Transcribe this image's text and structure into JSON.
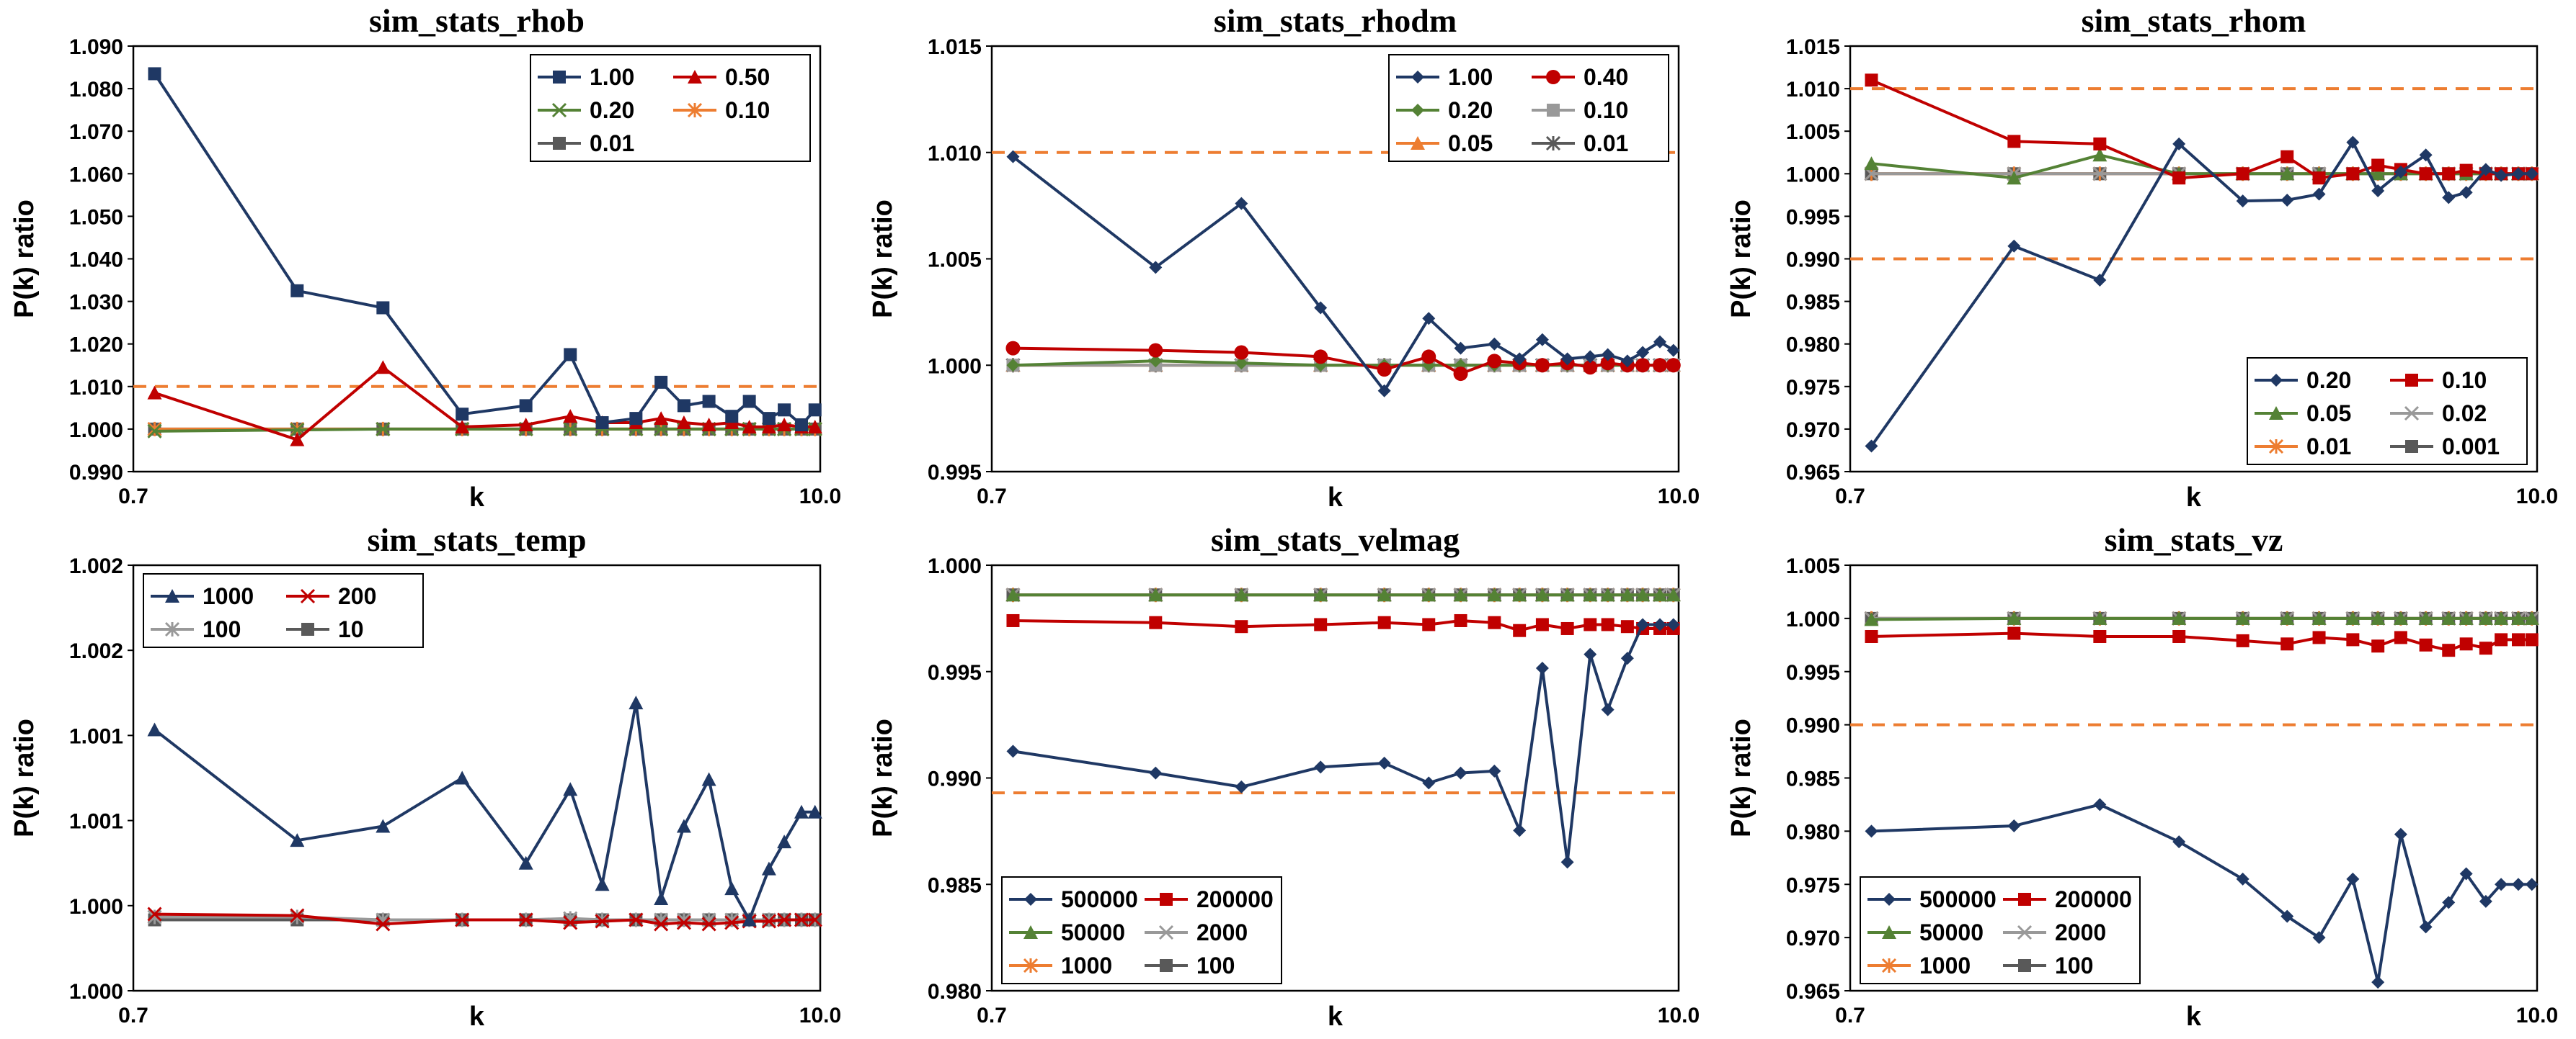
{
  "chart_data": [
    {
      "type": "line",
      "title": "sim_stats_rhob",
      "xlabel": "k",
      "ylabel": "P(k) ratio",
      "xscale": "log",
      "xlim": [
        0.7,
        10.0
      ],
      "ylim": [
        0.99,
        1.09
      ],
      "yticks": [
        "0.990",
        "1.000",
        "1.010",
        "1.020",
        "1.030",
        "1.040",
        "1.050",
        "1.060",
        "1.070",
        "1.080",
        "1.090"
      ],
      "xtick_labels": [
        "0.7",
        "10.0"
      ],
      "reference_lines": [
        1.01
      ],
      "legend": {
        "position": "top-right",
        "columns": 2
      },
      "x": [
        0.76,
        1.32,
        1.84,
        2.5,
        3.2,
        3.8,
        4.3,
        4.9,
        5.4,
        5.9,
        6.5,
        7.1,
        7.6,
        8.2,
        8.7,
        9.3,
        9.8
      ],
      "series": [
        {
          "name": "1.00",
          "color": "#1f3864",
          "marker": "square",
          "values": [
            1.0835,
            1.0325,
            1.0285,
            1.0035,
            1.0055,
            1.0175,
            1.0015,
            1.0025,
            1.011,
            1.0055,
            1.0065,
            1.003,
            1.0065,
            1.0025,
            1.0045,
            1.001,
            1.0045
          ]
        },
        {
          "name": "0.50",
          "color": "#c00000",
          "marker": "triangle",
          "values": [
            1.0085,
            0.9975,
            1.0145,
            1.0005,
            1.001,
            1.003,
            1.0015,
            1.0015,
            1.0025,
            1.0015,
            1.001,
            1.0015,
            1.0005,
            1.0005,
            1.001,
            1.0005,
            1.0005
          ]
        },
        {
          "name": "0.20",
          "color": "#548235",
          "marker": "x",
          "values": [
            0.9995,
            0.9998,
            1.0,
            1.0,
            1.0,
            1.0,
            1.0,
            1.0,
            1.0,
            1.0,
            1.0,
            1.0,
            1.0,
            1.0,
            1.0,
            1.0,
            1.0
          ]
        },
        {
          "name": "0.10",
          "color": "#ed7d31",
          "marker": "star",
          "values": [
            1.0,
            1.0,
            1.0,
            1.0,
            1.0,
            1.0,
            1.0,
            1.0,
            1.0,
            1.0,
            1.0,
            1.0,
            1.0,
            1.0,
            1.0,
            1.0,
            1.0
          ]
        },
        {
          "name": "0.01",
          "color": "#595959",
          "marker": "square",
          "values": [
            1.0,
            1.0,
            1.0,
            1.0,
            1.0,
            1.0,
            1.0,
            1.0,
            1.0,
            1.0,
            1.0,
            1.0,
            1.0,
            1.0,
            1.0,
            1.0,
            1.0
          ]
        }
      ]
    },
    {
      "type": "line",
      "title": "sim_stats_rhodm",
      "xlabel": "k",
      "ylabel": "P(k) ratio",
      "xscale": "log",
      "xlim": [
        0.7,
        10.0
      ],
      "ylim": [
        0.995,
        1.015
      ],
      "yticks": [
        "0.995",
        "1.000",
        "1.005",
        "1.010",
        "1.015"
      ],
      "xtick_labels": [
        "0.7",
        "10.0"
      ],
      "reference_lines": [
        1.01
      ],
      "legend": {
        "position": "top-right",
        "columns": 2
      },
      "x": [
        0.76,
        1.32,
        1.84,
        2.5,
        3.2,
        3.8,
        4.3,
        4.9,
        5.4,
        5.9,
        6.5,
        7.1,
        7.6,
        8.2,
        8.7,
        9.3,
        9.8
      ],
      "series": [
        {
          "name": "1.00",
          "color": "#1f3864",
          "marker": "diamond",
          "values": [
            1.0098,
            1.0046,
            1.0076,
            1.0027,
            0.9988,
            1.0022,
            1.0008,
            1.001,
            1.0003,
            1.0012,
            1.0003,
            1.0004,
            1.0005,
            1.0002,
            1.0006,
            1.0011,
            1.0007
          ]
        },
        {
          "name": "0.40",
          "color": "#c00000",
          "marker": "circle",
          "values": [
            1.0008,
            1.0007,
            1.0006,
            1.0004,
            0.9998,
            1.0004,
            0.9996,
            1.0002,
            1.0001,
            1.0,
            1.0001,
            0.9999,
            1.0001,
            1.0,
            1.0,
            1.0,
            1.0
          ]
        },
        {
          "name": "0.20",
          "color": "#548235",
          "marker": "diamond",
          "values": [
            1.0,
            1.0002,
            1.0001,
            1.0,
            1.0,
            1.0,
            1.0,
            1.0,
            1.0,
            1.0,
            1.0,
            1.0,
            1.0,
            1.0,
            1.0,
            1.0,
            1.0
          ]
        },
        {
          "name": "0.10",
          "color": "#999999",
          "marker": "square",
          "values": [
            1.0,
            1.0,
            1.0,
            1.0,
            1.0,
            1.0,
            1.0,
            1.0,
            1.0,
            1.0,
            1.0,
            1.0,
            1.0,
            1.0,
            1.0,
            1.0,
            1.0
          ]
        },
        {
          "name": "0.05",
          "color": "#ed7d31",
          "marker": "triangle",
          "values": [
            1.0,
            1.0,
            1.0,
            1.0,
            1.0,
            1.0,
            1.0,
            1.0,
            1.0,
            1.0,
            1.0,
            1.0,
            1.0,
            1.0,
            1.0,
            1.0,
            1.0
          ]
        },
        {
          "name": "0.01",
          "color": "#595959",
          "marker": "star",
          "values": [
            1.0,
            1.0,
            1.0,
            1.0,
            1.0,
            1.0,
            1.0,
            1.0,
            1.0,
            1.0,
            1.0,
            1.0,
            1.0,
            1.0,
            1.0,
            1.0,
            1.0
          ]
        }
      ]
    },
    {
      "type": "line",
      "title": "sim_stats_rhom",
      "xlabel": "k",
      "ylabel": "P(k) ratio",
      "xscale": "log",
      "xlim": [
        0.7,
        10.0
      ],
      "ylim": [
        0.965,
        1.015
      ],
      "yticks": [
        "0.965",
        "0.970",
        "0.975",
        "0.980",
        "0.985",
        "0.990",
        "0.995",
        "1.000",
        "1.005",
        "1.010",
        "1.015"
      ],
      "xtick_labels": [
        "0.7",
        "10.0"
      ],
      "reference_lines": [
        1.01,
        0.99
      ],
      "legend": {
        "position": "bottom-right",
        "columns": 2
      },
      "x": [
        0.76,
        1.32,
        1.84,
        2.5,
        3.2,
        3.8,
        4.3,
        4.9,
        5.4,
        5.9,
        6.5,
        7.1,
        7.6,
        8.2,
        8.7,
        9.3,
        9.8
      ],
      "series": [
        {
          "name": "0.20",
          "color": "#1f3864",
          "marker": "diamond",
          "values": [
            0.968,
            0.9915,
            0.9875,
            1.0035,
            0.9968,
            0.9969,
            0.9976,
            1.0037,
            0.998,
            1.0002,
            1.0022,
            0.9972,
            0.9978,
            1.0005,
            0.9998,
            1.0,
            1.0
          ]
        },
        {
          "name": "0.10",
          "color": "#c00000",
          "marker": "square",
          "values": [
            1.011,
            1.0038,
            1.0035,
            0.9995,
            1.0,
            1.002,
            0.9995,
            1.0,
            1.001,
            1.0005,
            1.0,
            1.0,
            1.0004,
            1.0,
            1.0,
            1.0,
            1.0
          ]
        },
        {
          "name": "0.05",
          "color": "#548235",
          "marker": "triangle",
          "values": [
            1.0012,
            0.9995,
            1.0022,
            1.0,
            1.0,
            1.0,
            1.0,
            1.0,
            1.0,
            1.0,
            1.0,
            1.0,
            1.0,
            1.0,
            1.0,
            1.0,
            1.0
          ]
        },
        {
          "name": "0.02",
          "color": "#999999",
          "marker": "x",
          "values": [
            1.0,
            1.0,
            1.0,
            1.0,
            1.0,
            1.0,
            1.0,
            1.0,
            1.0,
            1.0,
            1.0,
            1.0,
            1.0,
            1.0,
            1.0,
            1.0,
            1.0
          ]
        },
        {
          "name": "0.01",
          "color": "#ed7d31",
          "marker": "star",
          "values": [
            1.0,
            1.0,
            1.0,
            1.0,
            1.0,
            1.0,
            1.0,
            1.0,
            1.0,
            1.0,
            1.0,
            1.0,
            1.0,
            1.0,
            1.0,
            1.0,
            1.0
          ]
        },
        {
          "name": "0.001",
          "color": "#595959",
          "marker": "square",
          "values": [
            1.0,
            1.0,
            1.0,
            1.0,
            1.0,
            1.0,
            1.0,
            1.0,
            1.0,
            1.0,
            1.0,
            1.0,
            1.0,
            1.0,
            1.0,
            1.0,
            1.0
          ]
        }
      ]
    },
    {
      "type": "line",
      "title": "sim_stats_temp",
      "xlabel": "k",
      "ylabel": "P(k) ratio",
      "xscale": "log",
      "xlim": [
        0.7,
        10.0
      ],
      "ylim": [
        0.9995,
        1.0025
      ],
      "yticks": [
        "1.000",
        "1.000",
        "1.001",
        "1.001",
        "1.002",
        "1.002"
      ],
      "xtick_labels": [
        "0.7",
        "10.0"
      ],
      "reference_lines": [],
      "legend": {
        "position": "top-left",
        "columns": 2
      },
      "x": [
        0.76,
        1.32,
        1.84,
        2.5,
        3.2,
        3.8,
        4.3,
        4.9,
        5.4,
        5.9,
        6.5,
        7.1,
        7.6,
        8.2,
        8.7,
        9.3,
        9.8
      ],
      "series": [
        {
          "name": "1000",
          "color": "#1f3864",
          "marker": "triangle",
          "values": [
            1.00134,
            1.00056,
            1.00066,
            1.001,
            1.0004,
            1.00092,
            1.00025,
            1.00153,
            1.00015,
            1.00066,
            1.00099,
            1.00022,
            1.0,
            1.00036,
            1.00055,
            1.00076,
            1.00076
          ]
        },
        {
          "name": "200",
          "color": "#c00000",
          "marker": "x",
          "values": [
            1.00004,
            1.00003,
            0.99997,
            1.0,
            1.0,
            0.99998,
            0.99999,
            1.0,
            0.99997,
            0.99998,
            0.99997,
            0.99998,
            0.99999,
            0.99999,
            1.0,
            1.0,
            1.0
          ]
        },
        {
          "name": "100",
          "color": "#999999",
          "marker": "star",
          "values": [
            1.00002,
            1.00002,
            1.0,
            1.0,
            1.0,
            1.00001,
            1.0,
            1.0,
            1.0,
            1.0,
            1.0,
            1.0,
            1.0,
            1.0,
            1.0,
            1.0,
            1.0
          ]
        },
        {
          "name": "10",
          "color": "#595959",
          "marker": "square",
          "values": [
            1.0,
            1.0,
            1.0,
            1.0,
            1.0,
            1.0,
            1.0,
            1.0,
            1.0,
            1.0,
            1.0,
            1.0,
            1.0,
            1.0,
            1.0,
            1.0,
            1.0
          ]
        }
      ]
    },
    {
      "type": "line",
      "title": "sim_stats_velmag",
      "xlabel": "k",
      "ylabel": "P(k) ratio",
      "xscale": "log",
      "xlim": [
        0.7,
        10.0
      ],
      "ylim": [
        0.98,
        1.0015
      ],
      "yticks": [
        "0.980",
        "0.985",
        "0.990",
        "0.995",
        "1.000"
      ],
      "xtick_labels": [
        "0.7",
        "10.0"
      ],
      "reference_lines": [
        0.99
      ],
      "legend": {
        "position": "bottom-left",
        "columns": 2
      },
      "x": [
        0.76,
        1.32,
        1.84,
        2.5,
        3.2,
        3.8,
        4.3,
        4.9,
        5.4,
        5.9,
        6.5,
        7.1,
        7.6,
        8.2,
        8.7,
        9.3,
        9.8
      ],
      "series": [
        {
          "name": "500000",
          "color": "#1f3864",
          "marker": "diamond",
          "values": [
            0.9921,
            0.991,
            0.9903,
            0.9913,
            0.9915,
            0.9905,
            0.991,
            0.9911,
            0.9881,
            0.9963,
            0.9865,
            0.997,
            0.9942,
            0.9968,
            0.9985,
            0.9985,
            0.9985
          ]
        },
        {
          "name": "200000",
          "color": "#c00000",
          "marker": "square",
          "values": [
            0.9987,
            0.9986,
            0.9984,
            0.9985,
            0.9986,
            0.9985,
            0.9987,
            0.9986,
            0.9982,
            0.9985,
            0.9983,
            0.9985,
            0.9985,
            0.9984,
            0.9983,
            0.9983,
            0.9983
          ]
        },
        {
          "name": "50000",
          "color": "#548235",
          "marker": "triangle",
          "values": [
            1.0,
            1.0,
            1.0,
            1.0,
            1.0,
            1.0,
            1.0,
            1.0,
            1.0,
            1.0,
            1.0,
            1.0,
            1.0,
            1.0,
            1.0,
            1.0,
            1.0
          ]
        },
        {
          "name": "2000",
          "color": "#999999",
          "marker": "x",
          "values": [
            1.0,
            1.0,
            1.0,
            1.0,
            1.0,
            1.0,
            1.0,
            1.0,
            1.0,
            1.0,
            1.0,
            1.0,
            1.0,
            1.0,
            1.0,
            1.0,
            1.0
          ]
        },
        {
          "name": "1000",
          "color": "#ed7d31",
          "marker": "star",
          "values": [
            1.0,
            1.0,
            1.0,
            1.0,
            1.0,
            1.0,
            1.0,
            1.0,
            1.0,
            1.0,
            1.0,
            1.0,
            1.0,
            1.0,
            1.0,
            1.0,
            1.0
          ]
        },
        {
          "name": "100",
          "color": "#595959",
          "marker": "square",
          "values": [
            1.0,
            1.0,
            1.0,
            1.0,
            1.0,
            1.0,
            1.0,
            1.0,
            1.0,
            1.0,
            1.0,
            1.0,
            1.0,
            1.0,
            1.0,
            1.0,
            1.0
          ]
        }
      ]
    },
    {
      "type": "line",
      "title": "sim_stats_vz",
      "xlabel": "k",
      "ylabel": "P(k) ratio",
      "xscale": "log",
      "xlim": [
        0.7,
        10.0
      ],
      "ylim": [
        0.965,
        1.005
      ],
      "yticks": [
        "0.965",
        "0.970",
        "0.975",
        "0.980",
        "0.985",
        "0.990",
        "0.995",
        "1.000",
        "1.005"
      ],
      "xtick_labels": [
        "0.7",
        "10.0"
      ],
      "reference_lines": [
        0.99
      ],
      "legend": {
        "position": "bottom-left",
        "columns": 2
      },
      "x": [
        0.76,
        1.32,
        1.84,
        2.5,
        3.2,
        3.8,
        4.3,
        4.9,
        5.4,
        5.9,
        6.5,
        7.1,
        7.6,
        8.2,
        8.7,
        9.3,
        9.8
      ],
      "series": [
        {
          "name": "500000",
          "color": "#1f3864",
          "marker": "diamond",
          "values": [
            0.98,
            0.9805,
            0.9825,
            0.979,
            0.9755,
            0.972,
            0.97,
            0.9755,
            0.9658,
            0.9797,
            0.971,
            0.9733,
            0.976,
            0.9734,
            0.975,
            0.975,
            0.975
          ]
        },
        {
          "name": "200000",
          "color": "#c00000",
          "marker": "square",
          "values": [
            0.9983,
            0.9986,
            0.9983,
            0.9983,
            0.9979,
            0.9976,
            0.9982,
            0.998,
            0.9974,
            0.9982,
            0.9975,
            0.997,
            0.9976,
            0.9972,
            0.998,
            0.998,
            0.998
          ]
        },
        {
          "name": "50000",
          "color": "#548235",
          "marker": "triangle",
          "values": [
            0.9999,
            1.0,
            1.0,
            1.0,
            1.0,
            1.0,
            1.0,
            1.0,
            1.0,
            1.0,
            1.0,
            1.0,
            1.0,
            1.0,
            1.0,
            1.0,
            1.0
          ]
        },
        {
          "name": "2000",
          "color": "#999999",
          "marker": "x",
          "values": [
            1.0,
            1.0,
            1.0,
            1.0,
            1.0,
            1.0,
            1.0,
            1.0,
            1.0,
            1.0,
            1.0,
            1.0,
            1.0,
            1.0,
            1.0,
            1.0,
            1.0
          ]
        },
        {
          "name": "1000",
          "color": "#ed7d31",
          "marker": "star",
          "values": [
            1.0,
            1.0,
            1.0,
            1.0,
            1.0,
            1.0,
            1.0,
            1.0,
            1.0,
            1.0,
            1.0,
            1.0,
            1.0,
            1.0,
            1.0,
            1.0,
            1.0
          ]
        },
        {
          "name": "100",
          "color": "#595959",
          "marker": "square",
          "values": [
            1.0,
            1.0,
            1.0,
            1.0,
            1.0,
            1.0,
            1.0,
            1.0,
            1.0,
            1.0,
            1.0,
            1.0,
            1.0,
            1.0,
            1.0,
            1.0,
            1.0
          ]
        }
      ]
    }
  ]
}
